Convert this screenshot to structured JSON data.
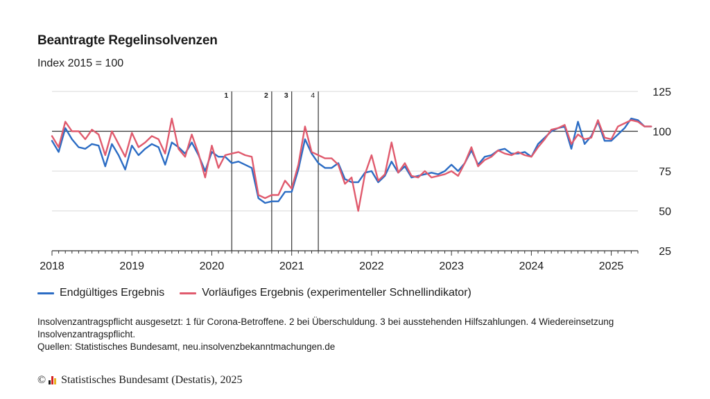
{
  "chart_data": {
    "type": "line",
    "title": "Beantragte Regelinsolvenzen",
    "subtitle": "Index 2015 = 100",
    "x_start": "2018-01",
    "x_end": "2025-05",
    "x_ticks": [
      "2018",
      "2019",
      "2020",
      "2021",
      "2022",
      "2023",
      "2024",
      "2025"
    ],
    "y_ticks": [
      25,
      50,
      75,
      100,
      125
    ],
    "ylim": [
      25,
      125
    ],
    "reference_value": 100,
    "grid": true,
    "y_axis_side": "right",
    "legend_position": "bottom-left",
    "series": [
      {
        "name": "Endgültiges Ergebnis",
        "color": "#2b6cc4",
        "values": [
          94,
          87,
          102,
          95,
          90,
          89,
          92,
          91,
          78,
          92,
          85,
          76,
          91,
          85,
          89,
          92,
          90,
          79,
          93,
          90,
          86,
          93,
          85,
          75,
          87,
          84,
          84,
          80,
          81,
          79,
          77,
          58,
          55,
          56,
          56,
          62,
          62,
          76,
          95,
          86,
          80,
          77,
          77,
          80,
          70,
          68,
          68,
          74,
          75,
          68,
          72,
          81,
          74,
          78,
          71,
          72,
          73,
          74,
          73,
          75,
          79,
          75,
          80,
          88,
          79,
          84,
          85,
          88,
          89,
          86,
          86,
          87,
          84,
          92,
          96,
          100,
          102,
          103,
          89,
          106,
          92,
          97,
          106,
          94,
          94,
          98,
          102,
          108,
          107,
          103,
          103
        ]
      },
      {
        "name": "Vorläufiges Ergebnis (experimenteller Schnellindikator)",
        "color": "#e05a6d",
        "values": [
          97,
          90,
          106,
          100,
          100,
          95,
          101,
          98,
          85,
          100,
          92,
          84,
          99,
          90,
          93,
          97,
          95,
          86,
          108,
          89,
          84,
          98,
          86,
          71,
          91,
          77,
          85,
          86,
          87,
          85,
          84,
          60,
          58,
          60,
          60,
          69,
          64,
          79,
          103,
          87,
          85,
          83,
          83,
          79,
          67,
          71,
          50,
          73,
          85,
          69,
          73,
          93,
          74,
          80,
          72,
          71,
          75,
          71,
          72,
          73,
          75,
          72,
          80,
          90,
          78,
          82,
          84,
          88,
          86,
          85,
          87,
          85,
          84,
          90,
          95,
          101,
          102,
          104,
          92,
          98,
          95,
          96,
          107,
          96,
          95,
          103,
          105,
          107,
          106,
          103,
          103
        ]
      }
    ],
    "annotations": [
      {
        "label": "1",
        "date": "2020-04"
      },
      {
        "label": "2",
        "date": "2020-10"
      },
      {
        "label": "3",
        "date": "2021-01"
      },
      {
        "label": "4",
        "date": "2021-05"
      }
    ]
  },
  "notes": {
    "line1": "Insolvenzantragspflicht ausgesetzt: 1 für Corona-Betroffene. 2 bei Überschuldung. 3 bei ausstehenden Hilfszahlungen. 4 Wiedereinsetzung Insolvenzantragspflicht.",
    "line2": "Quellen: Statistisches Bundesamt, neu.insolvenzbekanntmachungen.de"
  },
  "credit": {
    "copyright_symbol": "©",
    "text": "Statistisches Bundesamt (Destatis), 2025",
    "logo_colors": [
      "#1a1a1a",
      "#d62020",
      "#e8b420"
    ]
  }
}
